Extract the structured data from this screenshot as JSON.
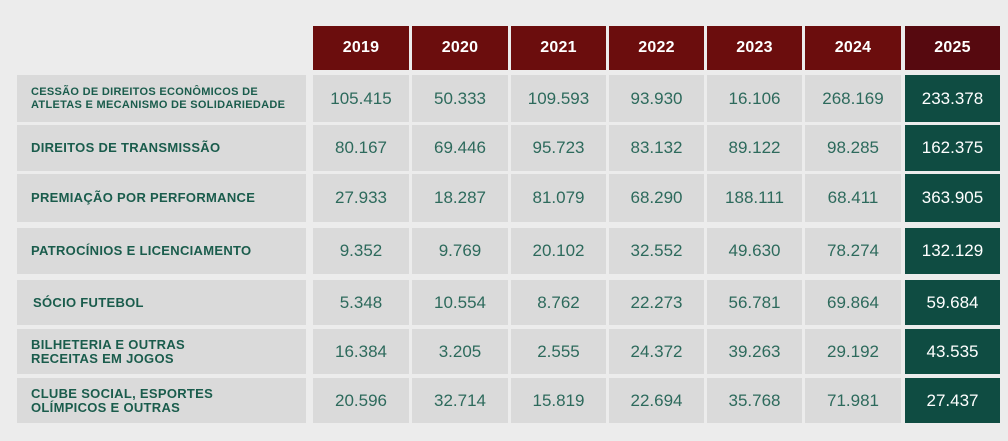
{
  "colors": {
    "header_bg": "#6b0d0d",
    "header_bg_last": "#56090f",
    "highlight_bg": "#0f4c42",
    "cell_bg": "#dadada",
    "label_text": "#1a5c4c",
    "value_text": "#2d6a5c"
  },
  "table": {
    "columns": [
      "2019",
      "2020",
      "2021",
      "2022",
      "2023",
      "2024",
      "2025"
    ],
    "rows": [
      {
        "label": "CESSÃO DE DIREITOS ECONÔMICOS DE\nATLETAS E MECANISMO DE SOLIDARIEDADE",
        "values": [
          "105.415",
          "50.333",
          "109.593",
          "93.930",
          "16.106",
          "268.169",
          "233.378"
        ]
      },
      {
        "label": "DIREITOS DE TRANSMISSÃO",
        "values": [
          "80.167",
          "69.446",
          "95.723",
          "83.132",
          "89.122",
          "98.285",
          "162.375"
        ]
      },
      {
        "label": "PREMIAÇÃO POR PERFORMANCE",
        "values": [
          "27.933",
          "18.287",
          "81.079",
          "68.290",
          "188.111",
          "68.411",
          "363.905"
        ]
      },
      {
        "label": "PATROCÍNIOS E LICENCIAMENTO",
        "values": [
          "9.352",
          "9.769",
          "20.102",
          "32.552",
          "49.630",
          "78.274",
          "132.129"
        ]
      },
      {
        "label": "SÓCIO FUTEBOL",
        "values": [
          "5.348",
          "10.554",
          "8.762",
          "22.273",
          "56.781",
          "69.864",
          "59.684"
        ]
      },
      {
        "label": "BILHETERIA E OUTRAS\nRECEITAS EM JOGOS",
        "values": [
          "16.384",
          "3.205",
          "2.555",
          "24.372",
          "39.263",
          "29.192",
          "43.535"
        ]
      },
      {
        "label": "CLUBE SOCIAL, ESPORTES\nOLÍMPICOS E OUTRAS",
        "values": [
          "20.596",
          "32.714",
          "15.819",
          "22.694",
          "35.768",
          "71.981",
          "27.437"
        ]
      }
    ]
  }
}
